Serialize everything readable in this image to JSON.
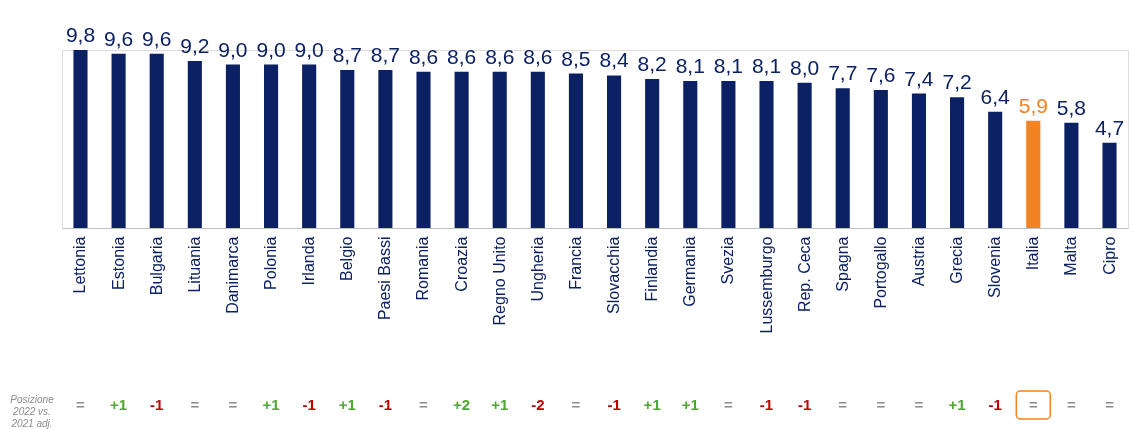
{
  "chart_data": {
    "type": "bar",
    "categories": [
      "Lettonia",
      "Estonia",
      "Bulgaria",
      "Lituania",
      "Danimarca",
      "Polonia",
      "Irlanda",
      "Belgio",
      "Paesi Bassi",
      "Romania",
      "Croazia",
      "Regno Unito",
      "Ungheria",
      "Francia",
      "Slovacchia",
      "Finlandia",
      "Germania",
      "Svezia",
      "Lussemburgo",
      "Rep. Ceca",
      "Spagna",
      "Portogallo",
      "Austria",
      "Grecia",
      "Slovenia",
      "Italia",
      "Malta",
      "Cipro"
    ],
    "values": [
      9.8,
      9.6,
      9.6,
      9.2,
      9.0,
      9.0,
      9.0,
      8.7,
      8.7,
      8.6,
      8.6,
      8.6,
      8.6,
      8.5,
      8.4,
      8.2,
      8.1,
      8.1,
      8.1,
      8.0,
      7.7,
      7.6,
      7.4,
      7.2,
      6.4,
      5.9,
      5.8,
      4.7
    ],
    "value_labels": [
      "9,8",
      "9,6",
      "9,6",
      "9,2",
      "9,0",
      "9,0",
      "9,0",
      "8,7",
      "8,7",
      "8,6",
      "8,6",
      "8,6",
      "8,6",
      "8,5",
      "8,4",
      "8,2",
      "8,1",
      "8,1",
      "8,1",
      "8,0",
      "7,7",
      "7,6",
      "7,4",
      "7,2",
      "6,4",
      "5,9",
      "5,8",
      "4,7"
    ],
    "colors": [
      "#0c2163",
      "#0c2163",
      "#0c2163",
      "#0c2163",
      "#0c2163",
      "#0c2163",
      "#0c2163",
      "#0c2163",
      "#0c2163",
      "#0c2163",
      "#0c2163",
      "#0c2163",
      "#0c2163",
      "#0c2163",
      "#0c2163",
      "#0c2163",
      "#0c2163",
      "#0c2163",
      "#0c2163",
      "#0c2163",
      "#0c2163",
      "#0c2163",
      "#0c2163",
      "#0c2163",
      "#0c2163",
      "#f58220",
      "#0c2163",
      "#0c2163"
    ],
    "annotations": [
      "Posizione\n2022 vs.\n2021 adj.",
      "=",
      "+1",
      "-1",
      "=",
      "=",
      "+1",
      "-1",
      "+1",
      "-1",
      "=",
      "+2",
      "+1",
      "-2",
      "=",
      "-1",
      "+1",
      "+1",
      "=",
      "-1",
      "-1",
      "=",
      "=",
      "=",
      "+1",
      "-1",
      "=",
      "=",
      "="
    ]
  }
}
